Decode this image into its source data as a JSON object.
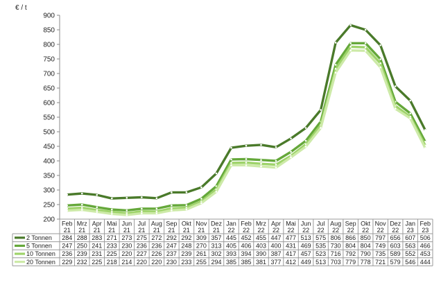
{
  "chart_data": {
    "type": "line",
    "ylabel": "€ / t",
    "ylim": [
      200,
      900
    ],
    "yticks": [
      200,
      250,
      300,
      350,
      400,
      450,
      500,
      550,
      600,
      650,
      700,
      750,
      800,
      850,
      900
    ],
    "grid": false,
    "legend": "data-table-left",
    "categories": [
      [
        "Feb",
        "21"
      ],
      [
        "Mrz",
        "21"
      ],
      [
        "Apr",
        "21"
      ],
      [
        "Mai",
        "21"
      ],
      [
        "Jun",
        "21"
      ],
      [
        "Jul",
        "21"
      ],
      [
        "Aug",
        "21"
      ],
      [
        "Sep",
        "21"
      ],
      [
        "Okt",
        "21"
      ],
      [
        "Nov",
        "21"
      ],
      [
        "Dez",
        "21"
      ],
      [
        "Jan",
        "22"
      ],
      [
        "Feb",
        "22"
      ],
      [
        "Mrz",
        "22"
      ],
      [
        "Apr",
        "22"
      ],
      [
        "Mai",
        "22"
      ],
      [
        "Jun",
        "22"
      ],
      [
        "Jul",
        "22"
      ],
      [
        "Aug",
        "22"
      ],
      [
        "Sep",
        "22"
      ],
      [
        "Okt",
        "22"
      ],
      [
        "Nov",
        "22"
      ],
      [
        "Dez",
        "22"
      ],
      [
        "Jan",
        "23"
      ],
      [
        "Feb",
        "23"
      ]
    ],
    "series": [
      {
        "name": "2 Tonnen",
        "color": "#4a7a2a",
        "values": [
          284,
          288,
          283,
          271,
          273,
          275,
          272,
          292,
          292,
          309,
          357,
          445,
          452,
          455,
          447,
          477,
          513,
          575,
          806,
          866,
          850,
          797,
          656,
          607,
          506
        ]
      },
      {
        "name": "5 Tonnen",
        "color": "#65a83a",
        "values": [
          247,
          250,
          241,
          233,
          230,
          236,
          236,
          247,
          248,
          270,
          313,
          405,
          406,
          403,
          400,
          431,
          469,
          535,
          730,
          804,
          804,
          749,
          603,
          563,
          466
        ]
      },
      {
        "name": "10 Tonnen",
        "color": "#9ed36a",
        "values": [
          236,
          239,
          231,
          225,
          220,
          227,
          226,
          237,
          239,
          261,
          302,
          393,
          394,
          390,
          387,
          417,
          457,
          523,
          716,
          792,
          790,
          735,
          589,
          552,
          453
        ]
      },
      {
        "name": "20 Tonnen",
        "color": "#cdeaa8",
        "values": [
          229,
          232,
          225,
          218,
          214,
          220,
          220,
          230,
          233,
          255,
          294,
          385,
          385,
          381,
          377,
          412,
          449,
          513,
          703,
          779,
          778,
          721,
          579,
          546,
          444
        ]
      }
    ]
  }
}
